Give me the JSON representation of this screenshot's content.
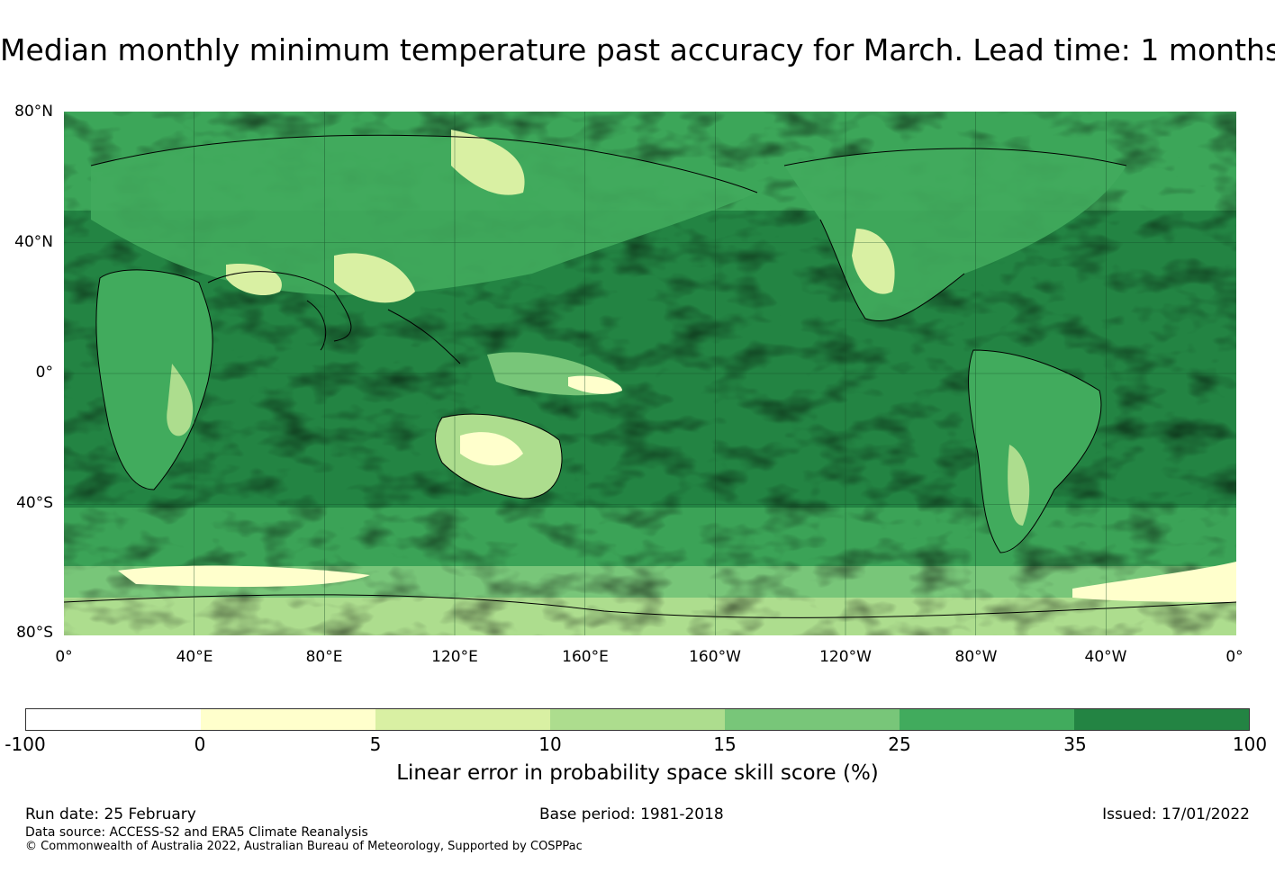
{
  "title": "Median monthly minimum temperature past accuracy for March. Lead time: 1 months",
  "map": {
    "lat_labels": [
      "80°N",
      "40°N",
      "0°",
      "40°S",
      "80°S"
    ],
    "lon_labels": [
      "0°",
      "40°E",
      "80°E",
      "120°E",
      "160°E",
      "160°W",
      "120°W",
      "80°W",
      "40°W",
      "0°"
    ]
  },
  "colorbar": {
    "ticks": [
      "-100",
      "0",
      "5",
      "10",
      "15",
      "25",
      "35",
      "100"
    ],
    "colors": [
      "#ffffff",
      "#ffffcc",
      "#d9f0a3",
      "#addd8e",
      "#78c679",
      "#41ab5d",
      "#238443"
    ],
    "label": "Linear error in probability space skill score (%)"
  },
  "footer": {
    "run_date": "Run date: 25 February",
    "base_period": "Base period: 1981-2018",
    "issued": "Issued: 17/01/2022",
    "data_source": "Data source: ACCESS-S2 and ERA5 Climate Reanalysis",
    "copyright": "© Commonwealth of Australia 2022, Australian Bureau of Meteorology, Supported by COSPPac"
  }
}
